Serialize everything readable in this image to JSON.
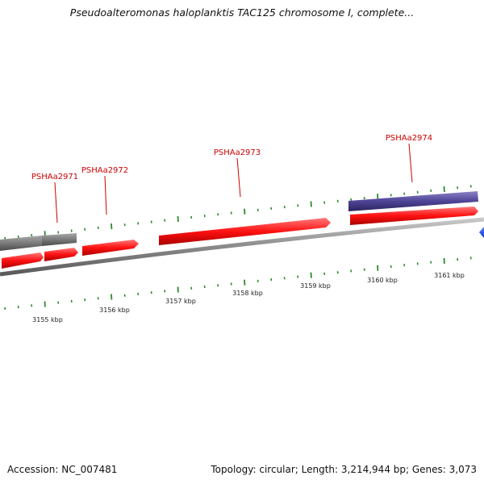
{
  "title": "Pseudoalteromonas haloplanktis TAC125 chromosome I, complete...",
  "footer": {
    "accession": "Accession: NC_007481",
    "summary": "Topology: circular; Length: 3,214,944 bp; Genes: 3,073"
  },
  "colors": {
    "backbone": "#8f8f8f",
    "gene_forward": "#ee1111",
    "gene_other": "#707070",
    "gene_highlight": "#4a3f8f",
    "tick": "#2d8a2d",
    "label": "#cc0000"
  },
  "chart_data": {
    "type": "genome-map",
    "tick_unit": "kbp",
    "axis_labels": [
      "3155 kbp",
      "3156 kbp",
      "3157 kbp",
      "3158 kbp",
      "3159 kbp",
      "3160 kbp",
      "3161 kbp"
    ],
    "gene_labels": [
      "PSHAa2971",
      "PSHAa2972",
      "PSHAa2973",
      "PSHAa2974"
    ]
  }
}
